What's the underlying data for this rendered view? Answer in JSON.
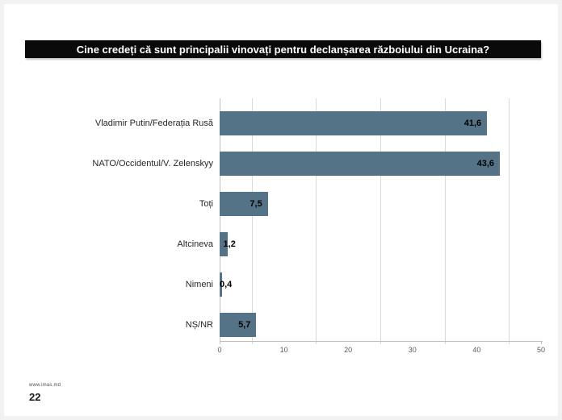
{
  "slide": {
    "footer": {
      "website": "www.imas.md",
      "page_number": "22"
    }
  },
  "chart_data": {
    "type": "bar",
    "orientation": "horizontal",
    "title": "Cine credeți că sunt principalii vinovați pentru declanșarea războiului din Ucraina?",
    "categories": [
      "Vladimir Putin/Federația Rusă",
      "NATO/Occidentul/V. Zelenskyy",
      "Toți",
      "Altcineva",
      "Nimeni",
      "NȘ/NR"
    ],
    "values": [
      41.6,
      43.6,
      7.5,
      1.2,
      0.4,
      5.7
    ],
    "value_labels": [
      "41,6",
      "43,6",
      "7,5",
      "1,2",
      "0,4",
      "5,7"
    ],
    "xlim": [
      0,
      50
    ],
    "x_ticks": [
      0,
      10,
      20,
      30,
      40,
      50
    ],
    "gridlines_at": [
      5,
      15,
      25,
      35,
      45
    ],
    "grid": true,
    "legend": false,
    "colors": {
      "bar": "#547387",
      "gridline": "#d9d9d9",
      "axis": "#bfbfbf",
      "title_bg": "#0a0a0a",
      "title_text": "#ffffff"
    }
  }
}
